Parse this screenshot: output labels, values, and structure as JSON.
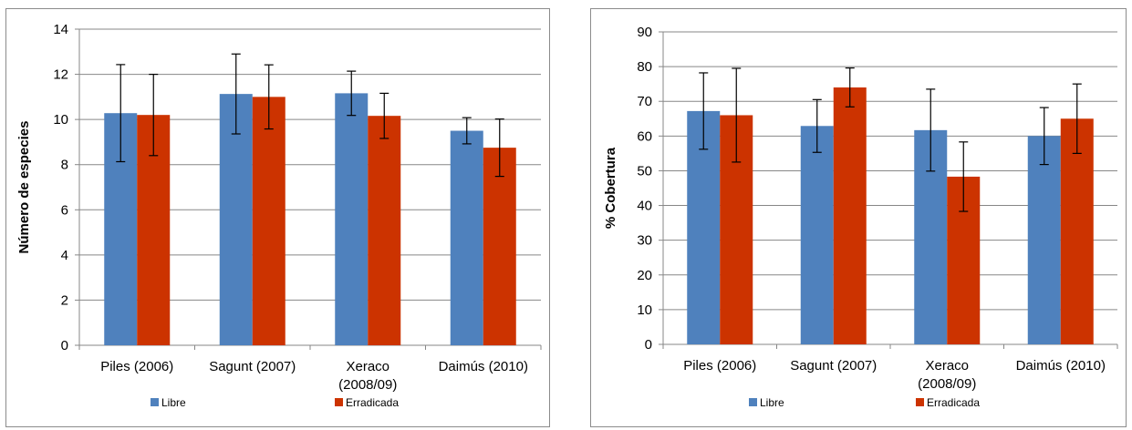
{
  "colors": {
    "libre": "#4f81bd",
    "erradicada": "#cc3300",
    "grid": "#878787",
    "axis": "#878787",
    "error_bar": "#000000"
  },
  "chart_data": [
    {
      "type": "bar",
      "ylabel": "Número de especies",
      "ylim": [
        0,
        14
      ],
      "yticks": [
        0,
        2,
        4,
        6,
        8,
        10,
        12,
        14
      ],
      "grid": true,
      "legend": "bottom",
      "categories": [
        [
          "Piles (2006)"
        ],
        [
          "Sagunt (2007)"
        ],
        [
          "Xeraco",
          "(2008/09)"
        ],
        [
          "Daimús (2010)"
        ]
      ],
      "series": [
        {
          "name": "Libre",
          "color": "#4f81bd",
          "values": [
            10.28,
            11.13,
            11.16,
            9.5
          ],
          "error": [
            2.15,
            1.77,
            0.98,
            0.58
          ]
        },
        {
          "name": "Erradicada",
          "color": "#cc3300",
          "values": [
            10.2,
            11.0,
            10.16,
            8.75
          ],
          "error": [
            1.8,
            1.42,
            1.0,
            1.27
          ]
        }
      ]
    },
    {
      "type": "bar",
      "ylabel": "% Cobertura",
      "ylim": [
        0,
        90
      ],
      "yticks": [
        0,
        10,
        20,
        30,
        40,
        50,
        60,
        70,
        80,
        90
      ],
      "grid": true,
      "legend": "bottom",
      "categories": [
        [
          "Piles (2006)"
        ],
        [
          "Sagunt (2007)"
        ],
        [
          "Xeraco",
          "(2008/09)"
        ],
        [
          "Daimús (2010)"
        ]
      ],
      "series": [
        {
          "name": "Libre",
          "color": "#4f81bd",
          "values": [
            67.2,
            62.9,
            61.7,
            60.0
          ],
          "error": [
            11.0,
            7.6,
            11.8,
            8.2
          ]
        },
        {
          "name": "Erradicada",
          "color": "#cc3300",
          "values": [
            66.0,
            74.0,
            48.3,
            65.0
          ],
          "error": [
            13.5,
            5.6,
            10.0,
            10.0
          ]
        }
      ]
    }
  ]
}
